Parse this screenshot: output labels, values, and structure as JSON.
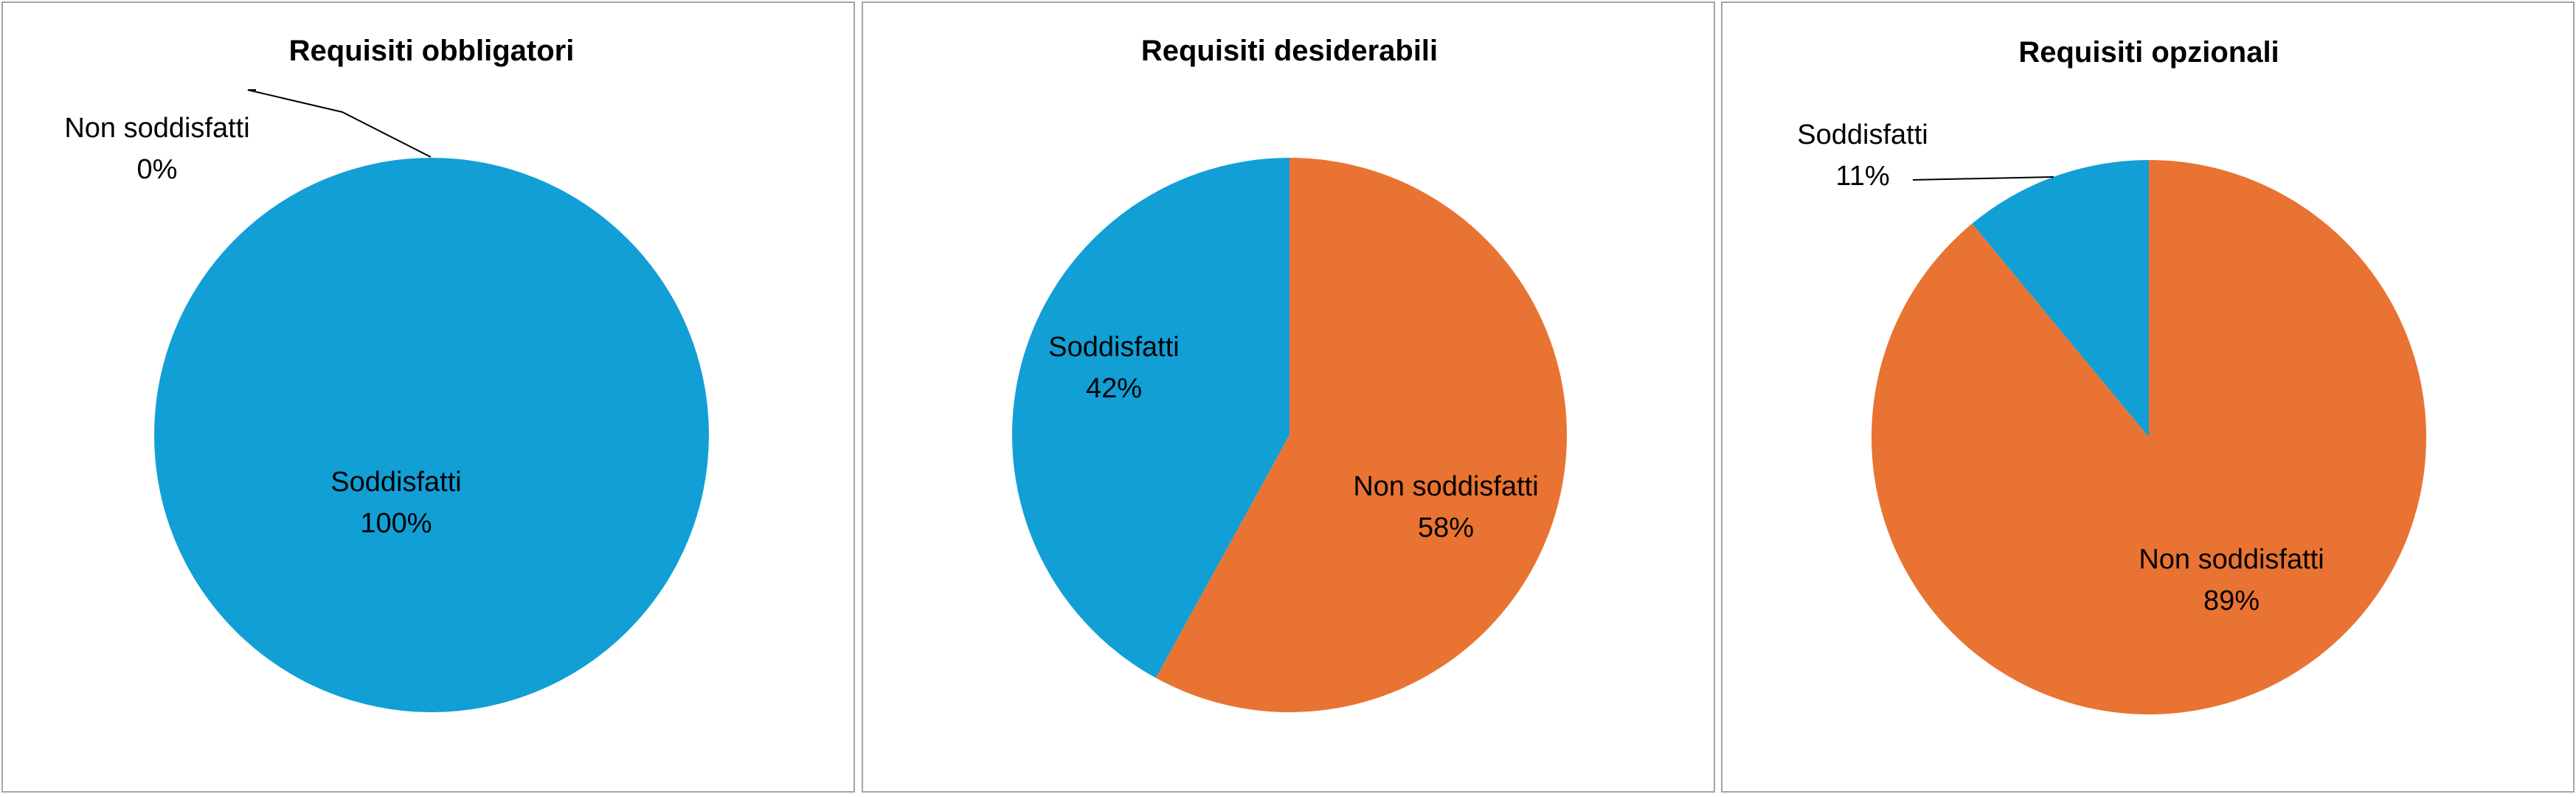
{
  "colors": {
    "soddisfatti": "#119fd6",
    "non_soddisfatti": "#e97332",
    "leader": "#000000",
    "border": "#a6a6a6"
  },
  "chart_data": [
    {
      "type": "pie",
      "title": "Requisiti obbligatori",
      "slices": [
        {
          "label": "Non soddisfatti",
          "value": 0,
          "display": "0%",
          "color": "#e97332"
        },
        {
          "label": "Soddisfatti",
          "value": 100,
          "display": "100%",
          "color": "#119fd6"
        }
      ]
    },
    {
      "type": "pie",
      "title": "Requisiti desiderabili",
      "slices": [
        {
          "label": "Non soddisfatti",
          "value": 58,
          "display": "58%",
          "color": "#e97332"
        },
        {
          "label": "Soddisfatti",
          "value": 42,
          "display": "42%",
          "color": "#119fd6"
        }
      ]
    },
    {
      "type": "pie",
      "title": "Requisiti opzionali",
      "slices": [
        {
          "label": "Non soddisfatti",
          "value": 89,
          "display": "89%",
          "color": "#e97332"
        },
        {
          "label": "Soddisfatti",
          "value": 11,
          "display": "11%",
          "color": "#119fd6"
        }
      ]
    }
  ]
}
